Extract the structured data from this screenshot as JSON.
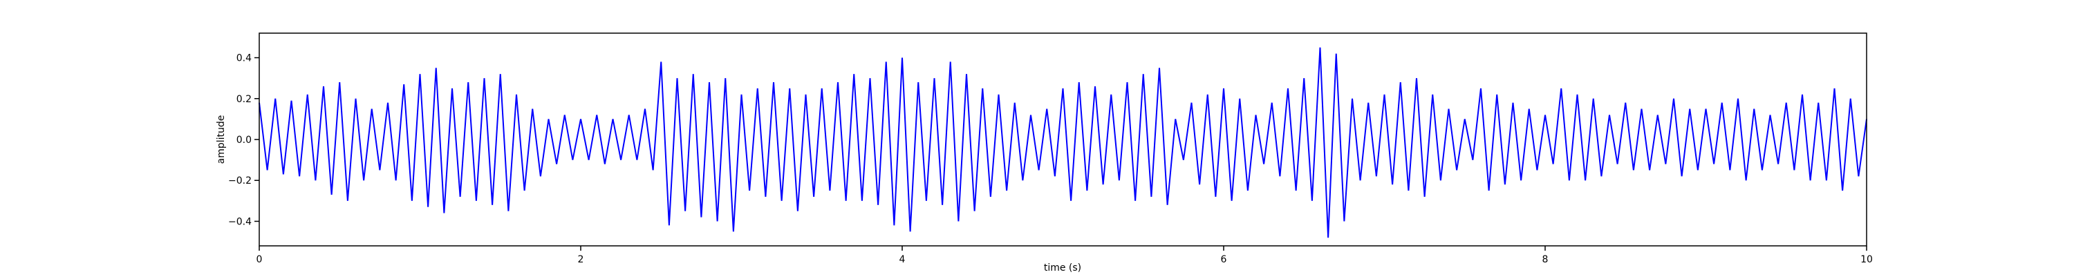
{
  "chart_data": {
    "type": "line",
    "xlabel": "time (s)",
    "ylabel": "amplitude",
    "color": "#0000ff",
    "xlim": [
      0,
      10
    ],
    "ylim": [
      -0.52,
      0.52
    ],
    "xticks": [
      0,
      2,
      4,
      6,
      8,
      10
    ],
    "yticks": [
      {
        "value": -0.4,
        "label": "−0.4"
      },
      {
        "value": -0.2,
        "label": "−0.2"
      },
      {
        "value": 0,
        "label": "0.0"
      },
      {
        "value": 0.2,
        "label": "0.2"
      },
      {
        "value": 0.4,
        "label": "0.4"
      }
    ],
    "x": [
      0,
      0.05,
      0.1,
      0.15,
      0.2,
      0.25,
      0.3,
      0.35,
      0.4,
      0.45,
      0.5,
      0.55,
      0.6,
      0.65,
      0.7,
      0.75,
      0.8,
      0.85,
      0.9,
      0.95,
      1,
      1.05,
      1.1,
      1.15,
      1.2,
      1.25,
      1.3,
      1.35,
      1.4,
      1.45,
      1.5,
      1.55,
      1.6,
      1.65,
      1.7,
      1.75,
      1.8,
      1.85,
      1.9,
      1.95,
      2,
      2.05,
      2.1,
      2.15,
      2.2,
      2.25,
      2.3,
      2.35,
      2.4,
      2.45,
      2.5,
      2.55,
      2.6,
      2.65,
      2.7,
      2.75,
      2.8,
      2.85,
      2.9,
      2.95,
      3,
      3.05,
      3.1,
      3.15,
      3.2,
      3.25,
      3.3,
      3.35,
      3.4,
      3.45,
      3.5,
      3.55,
      3.6,
      3.65,
      3.7,
      3.75,
      3.8,
      3.85,
      3.9,
      3.95,
      4,
      4.05,
      4.1,
      4.15,
      4.2,
      4.25,
      4.3,
      4.35,
      4.4,
      4.45,
      4.5,
      4.55,
      4.6,
      4.65,
      4.7,
      4.75,
      4.8,
      4.85,
      4.9,
      4.95,
      5,
      5.05,
      5.1,
      5.15,
      5.2,
      5.25,
      5.3,
      5.35,
      5.4,
      5.45,
      5.5,
      5.55,
      5.6,
      5.65,
      5.7,
      5.75,
      5.8,
      5.85,
      5.9,
      5.95,
      6,
      6.05,
      6.1,
      6.15,
      6.2,
      6.25,
      6.3,
      6.35,
      6.4,
      6.45,
      6.5,
      6.55,
      6.6,
      6.65,
      6.7,
      6.75,
      6.8,
      6.85,
      6.9,
      6.95,
      7,
      7.05,
      7.1,
      7.15,
      7.2,
      7.25,
      7.3,
      7.35,
      7.4,
      7.45,
      7.5,
      7.55,
      7.6,
      7.65,
      7.7,
      7.75,
      7.8,
      7.85,
      7.9,
      7.95,
      8,
      8.05,
      8.1,
      8.15,
      8.2,
      8.25,
      8.3,
      8.35,
      8.4,
      8.45,
      8.5,
      8.55,
      8.6,
      8.65,
      8.7,
      8.75,
      8.8,
      8.85,
      8.9,
      8.95,
      9,
      9.05,
      9.1,
      9.15,
      9.2,
      9.25,
      9.3,
      9.35,
      9.4,
      9.45,
      9.5,
      9.55,
      9.6,
      9.65,
      9.7,
      9.75,
      9.8,
      9.85,
      9.9,
      9.95,
      10
    ],
    "values": [
      0.18,
      -0.15,
      0.2,
      -0.17,
      0.19,
      -0.18,
      0.22,
      -0.2,
      0.26,
      -0.27,
      0.28,
      -0.3,
      0.2,
      -0.2,
      0.15,
      -0.15,
      0.18,
      -0.2,
      0.27,
      -0.3,
      0.32,
      -0.33,
      0.35,
      -0.36,
      0.25,
      -0.28,
      0.28,
      -0.3,
      0.3,
      -0.32,
      0.32,
      -0.35,
      0.22,
      -0.25,
      0.15,
      -0.18,
      0.1,
      -0.12,
      0.12,
      -0.1,
      0.1,
      -0.1,
      0.12,
      -0.12,
      0.1,
      -0.1,
      0.12,
      -0.1,
      0.15,
      -0.15,
      0.38,
      -0.42,
      0.3,
      -0.35,
      0.32,
      -0.38,
      0.28,
      -0.4,
      0.3,
      -0.45,
      0.22,
      -0.25,
      0.25,
      -0.28,
      0.28,
      -0.3,
      0.25,
      -0.35,
      0.22,
      -0.28,
      0.25,
      -0.25,
      0.28,
      -0.3,
      0.32,
      -0.3,
      0.3,
      -0.32,
      0.38,
      -0.42,
      0.4,
      -0.45,
      0.28,
      -0.3,
      0.3,
      -0.32,
      0.38,
      -0.4,
      0.32,
      -0.35,
      0.25,
      -0.28,
      0.22,
      -0.25,
      0.18,
      -0.2,
      0.12,
      -0.15,
      0.15,
      -0.18,
      0.25,
      -0.3,
      0.28,
      -0.25,
      0.26,
      -0.22,
      0.22,
      -0.2,
      0.28,
      -0.3,
      0.32,
      -0.28,
      0.35,
      -0.32,
      0.1,
      -0.1,
      0.18,
      -0.22,
      0.22,
      -0.28,
      0.25,
      -0.3,
      0.2,
      -0.25,
      0.12,
      -0.12,
      0.18,
      -0.18,
      0.25,
      -0.25,
      0.3,
      -0.3,
      0.45,
      -0.48,
      0.42,
      -0.4,
      0.2,
      -0.2,
      0.18,
      -0.18,
      0.22,
      -0.22,
      0.28,
      -0.25,
      0.3,
      -0.28,
      0.22,
      -0.2,
      0.15,
      -0.15,
      0.1,
      -0.1,
      0.25,
      -0.25,
      0.22,
      -0.22,
      0.18,
      -0.2,
      0.15,
      -0.15,
      0.12,
      -0.12,
      0.25,
      -0.2,
      0.22,
      -0.2,
      0.2,
      -0.18,
      0.12,
      -0.12,
      0.18,
      -0.15,
      0.15,
      -0.15,
      0.12,
      -0.12,
      0.2,
      -0.18,
      0.15,
      -0.15,
      0.15,
      -0.12,
      0.18,
      -0.15,
      0.2,
      -0.2,
      0.15,
      -0.15,
      0.12,
      -0.12,
      0.18,
      -0.15,
      0.22,
      -0.2,
      0.18,
      -0.2,
      0.25,
      -0.25,
      0.2,
      -0.18,
      0.1
    ]
  }
}
